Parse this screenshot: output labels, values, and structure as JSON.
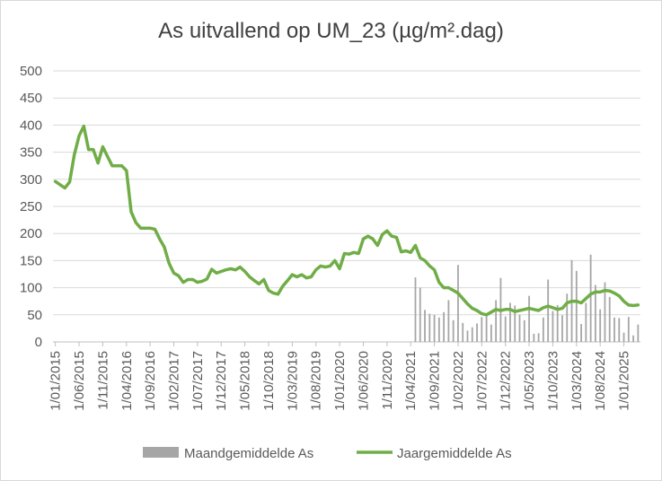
{
  "chart_data": {
    "type": "bar+line",
    "title": "As uitvallend op UM_23 (µg/m².dag)",
    "ylim": [
      0,
      500
    ],
    "y_ticks": [
      "0",
      "50",
      "100",
      "150",
      "200",
      "250",
      "300",
      "350",
      "400",
      "450",
      "500"
    ],
    "x_range": [
      "2015-01",
      "2025-02"
    ],
    "x_tick_labels": [
      "1/01/2015",
      "1/06/2015",
      "1/11/2015",
      "1/04/2016",
      "1/09/2016",
      "1/02/2017",
      "1/07/2017",
      "1/12/2017",
      "1/05/2018",
      "1/10/2018",
      "1/03/2019",
      "1/08/2019",
      "1/01/2020",
      "1/06/2020",
      "1/11/2020",
      "1/04/2021",
      "1/09/2021",
      "1/02/2022",
      "1/07/2022",
      "1/12/2022",
      "1/05/2023",
      "1/10/2023",
      "1/03/2024",
      "1/08/2024",
      "1/01/2025"
    ],
    "grid": "horizontal",
    "legend_position": "bottom",
    "colors": {
      "bars": "#a6a6a6",
      "line": "#70ad47",
      "grid": "#d9d9d9"
    },
    "series": [
      {
        "name": "Maandgemiddelde As",
        "type": "bar",
        "points": [
          [
            "2021-05",
            119
          ],
          [
            "2021-06",
            100
          ],
          [
            "2021-07",
            59
          ],
          [
            "2021-08",
            52
          ],
          [
            "2021-09",
            50
          ],
          [
            "2021-10",
            45
          ],
          [
            "2021-11",
            55
          ],
          [
            "2021-12",
            77
          ],
          [
            "2022-01",
            40
          ],
          [
            "2022-02",
            142
          ],
          [
            "2022-03",
            35
          ],
          [
            "2022-04",
            21
          ],
          [
            "2022-05",
            27
          ],
          [
            "2022-06",
            34
          ],
          [
            "2022-07",
            46
          ],
          [
            "2022-08",
            48
          ],
          [
            "2022-09",
            32
          ],
          [
            "2022-10",
            77
          ],
          [
            "2022-11",
            118
          ],
          [
            "2022-12",
            47
          ],
          [
            "2023-01",
            72
          ],
          [
            "2023-02",
            67
          ],
          [
            "2023-03",
            50
          ],
          [
            "2023-04",
            40
          ],
          [
            "2023-05",
            85
          ],
          [
            "2023-06",
            15
          ],
          [
            "2023-07",
            16
          ],
          [
            "2023-08",
            45
          ],
          [
            "2023-09",
            115
          ],
          [
            "2023-10",
            57
          ],
          [
            "2023-11",
            68
          ],
          [
            "2023-12",
            49
          ],
          [
            "2024-01",
            89
          ],
          [
            "2024-02",
            151
          ],
          [
            "2024-03",
            131
          ],
          [
            "2024-04",
            33
          ],
          [
            "2024-05",
            72
          ],
          [
            "2024-06",
            161
          ],
          [
            "2024-07",
            105
          ],
          [
            "2024-08",
            60
          ],
          [
            "2024-09",
            110
          ],
          [
            "2024-10",
            83
          ],
          [
            "2024-11",
            45
          ],
          [
            "2024-12",
            44
          ],
          [
            "2025-01",
            17
          ],
          [
            "2025-02",
            46
          ],
          [
            "2025-03",
            12
          ],
          [
            "2025-04",
            32
          ]
        ]
      },
      {
        "name": "Jaargemiddelde As",
        "type": "line",
        "points": [
          [
            "2015-01",
            296
          ],
          [
            "2015-02",
            290
          ],
          [
            "2015-03",
            284
          ],
          [
            "2015-04",
            295
          ],
          [
            "2015-05",
            345
          ],
          [
            "2015-06",
            380
          ],
          [
            "2015-07",
            398
          ],
          [
            "2015-08",
            355
          ],
          [
            "2015-09",
            355
          ],
          [
            "2015-10",
            330
          ],
          [
            "2015-11",
            360
          ],
          [
            "2015-12",
            342
          ],
          [
            "2016-01",
            325
          ],
          [
            "2016-02",
            325
          ],
          [
            "2016-03",
            325
          ],
          [
            "2016-04",
            316
          ],
          [
            "2016-05",
            240
          ],
          [
            "2016-06",
            220
          ],
          [
            "2016-07",
            210
          ],
          [
            "2016-08",
            210
          ],
          [
            "2016-09",
            210
          ],
          [
            "2016-10",
            208
          ],
          [
            "2016-11",
            190
          ],
          [
            "2016-12",
            175
          ],
          [
            "2017-01",
            145
          ],
          [
            "2017-02",
            127
          ],
          [
            "2017-03",
            122
          ],
          [
            "2017-04",
            110
          ],
          [
            "2017-05",
            115
          ],
          [
            "2017-06",
            115
          ],
          [
            "2017-07",
            110
          ],
          [
            "2017-08",
            112
          ],
          [
            "2017-09",
            116
          ],
          [
            "2017-10",
            134
          ],
          [
            "2017-11",
            127
          ],
          [
            "2017-12",
            130
          ],
          [
            "2018-01",
            133
          ],
          [
            "2018-02",
            135
          ],
          [
            "2018-03",
            133
          ],
          [
            "2018-04",
            138
          ],
          [
            "2018-05",
            130
          ],
          [
            "2018-06",
            120
          ],
          [
            "2018-07",
            113
          ],
          [
            "2018-08",
            107
          ],
          [
            "2018-09",
            115
          ],
          [
            "2018-10",
            95
          ],
          [
            "2018-11",
            90
          ],
          [
            "2018-12",
            88
          ],
          [
            "2019-01",
            103
          ],
          [
            "2019-02",
            113
          ],
          [
            "2019-03",
            124
          ],
          [
            "2019-04",
            120
          ],
          [
            "2019-05",
            124
          ],
          [
            "2019-06",
            118
          ],
          [
            "2019-07",
            120
          ],
          [
            "2019-08",
            133
          ],
          [
            "2019-09",
            140
          ],
          [
            "2019-10",
            138
          ],
          [
            "2019-11",
            140
          ],
          [
            "2019-12",
            150
          ],
          [
            "2020-01",
            135
          ],
          [
            "2020-02",
            163
          ],
          [
            "2020-03",
            162
          ],
          [
            "2020-04",
            165
          ],
          [
            "2020-05",
            163
          ],
          [
            "2020-06",
            190
          ],
          [
            "2020-07",
            195
          ],
          [
            "2020-08",
            190
          ],
          [
            "2020-09",
            178
          ],
          [
            "2020-10",
            198
          ],
          [
            "2020-11",
            205
          ],
          [
            "2020-12",
            195
          ],
          [
            "2021-01",
            193
          ],
          [
            "2021-02",
            166
          ],
          [
            "2021-03",
            168
          ],
          [
            "2021-04",
            165
          ],
          [
            "2021-05",
            178
          ],
          [
            "2021-06",
            155
          ],
          [
            "2021-07",
            150
          ],
          [
            "2021-08",
            140
          ],
          [
            "2021-09",
            133
          ],
          [
            "2021-10",
            110
          ],
          [
            "2021-11",
            100
          ],
          [
            "2021-12",
            100
          ],
          [
            "2022-01",
            95
          ],
          [
            "2022-02",
            90
          ],
          [
            "2022-03",
            80
          ],
          [
            "2022-04",
            70
          ],
          [
            "2022-05",
            62
          ],
          [
            "2022-06",
            58
          ],
          [
            "2022-07",
            52
          ],
          [
            "2022-08",
            50
          ],
          [
            "2022-09",
            55
          ],
          [
            "2022-10",
            60
          ],
          [
            "2022-11",
            58
          ],
          [
            "2022-12",
            60
          ],
          [
            "2023-01",
            60
          ],
          [
            "2023-02",
            56
          ],
          [
            "2023-03",
            58
          ],
          [
            "2023-04",
            60
          ],
          [
            "2023-05",
            62
          ],
          [
            "2023-06",
            60
          ],
          [
            "2023-07",
            58
          ],
          [
            "2023-08",
            63
          ],
          [
            "2023-09",
            66
          ],
          [
            "2023-10",
            63
          ],
          [
            "2023-11",
            60
          ],
          [
            "2023-12",
            62
          ],
          [
            "2024-01",
            72
          ],
          [
            "2024-02",
            75
          ],
          [
            "2024-03",
            75
          ],
          [
            "2024-04",
            72
          ],
          [
            "2024-05",
            80
          ],
          [
            "2024-06",
            88
          ],
          [
            "2024-07",
            92
          ],
          [
            "2024-08",
            92
          ],
          [
            "2024-09",
            95
          ],
          [
            "2024-10",
            94
          ],
          [
            "2024-11",
            90
          ],
          [
            "2024-12",
            85
          ],
          [
            "2025-01",
            75
          ],
          [
            "2025-02",
            68
          ],
          [
            "2025-03",
            67
          ],
          [
            "2025-04",
            68
          ]
        ]
      }
    ]
  }
}
